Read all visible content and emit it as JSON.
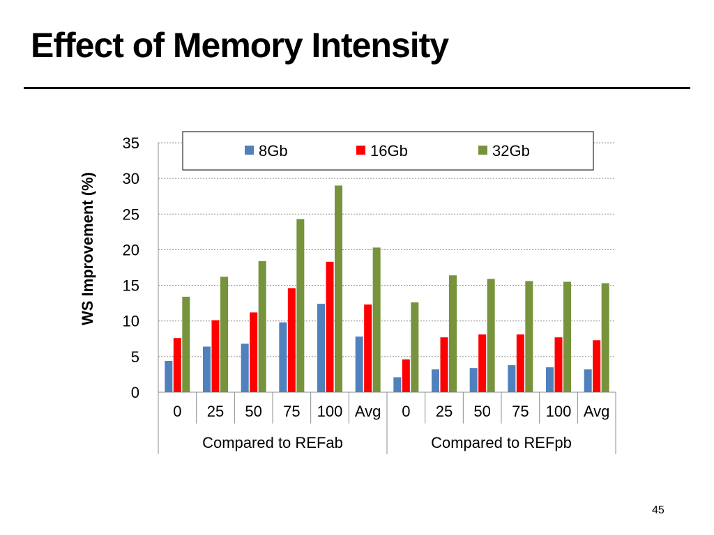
{
  "slide": {
    "title": "Effect of Memory Intensity",
    "page_number": "45"
  },
  "chart_data": {
    "type": "bar",
    "title": "",
    "ylabel": "WS Improvement (%)",
    "xlabel": "",
    "ylim": [
      0,
      35
    ],
    "yticks": [
      0,
      5,
      10,
      15,
      20,
      25,
      30,
      35
    ],
    "grid": true,
    "legend_position": "top",
    "categories": [
      "0",
      "25",
      "50",
      "75",
      "100",
      "Avg",
      "0",
      "25",
      "50",
      "75",
      "100",
      "Avg"
    ],
    "groups": [
      {
        "label": "Compared to REFab",
        "count": 6
      },
      {
        "label": "Compared to REFpb",
        "count": 6
      }
    ],
    "series": [
      {
        "name": "8Gb",
        "color": "#4f81bd",
        "values": [
          4.4,
          6.4,
          6.8,
          9.8,
          12.4,
          7.8,
          2.1,
          3.2,
          3.4,
          3.8,
          3.5,
          3.2
        ]
      },
      {
        "name": "16Gb",
        "color": "#ff0000",
        "values": [
          7.6,
          10.1,
          11.2,
          14.6,
          18.3,
          12.3,
          4.6,
          7.7,
          8.1,
          8.1,
          7.7,
          7.3
        ]
      },
      {
        "name": "32Gb",
        "color": "#77933c",
        "values": [
          13.4,
          16.2,
          18.4,
          24.3,
          29.0,
          20.3,
          12.6,
          16.4,
          15.9,
          15.6,
          15.5,
          15.3
        ]
      }
    ]
  }
}
